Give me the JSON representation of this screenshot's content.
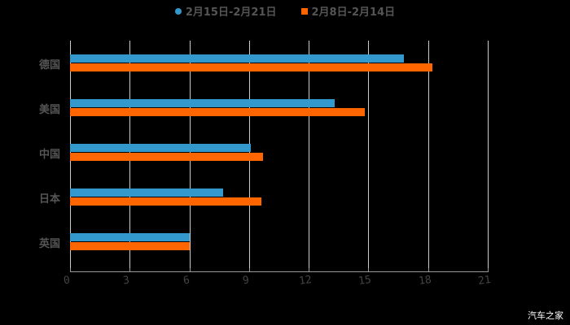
{
  "chart_data": {
    "type": "bar",
    "orientation": "horizontal",
    "title": "",
    "categories": [
      "德国",
      "美国",
      "中国",
      "日本",
      "英国"
    ],
    "series": [
      {
        "name": "2月15日-2月21日",
        "color": "#3399cc",
        "values": [
          16.8,
          13.3,
          9.1,
          7.7,
          6.0
        ]
      },
      {
        "name": "2月8日-2月14日",
        "color": "#ff6600",
        "values": [
          18.2,
          14.8,
          9.7,
          9.6,
          6.0
        ]
      }
    ],
    "xlabel": "",
    "ylabel": "",
    "xlim": [
      0,
      21
    ],
    "xticks": [
      "0",
      "3",
      "6",
      "9",
      "12",
      "15",
      "18",
      "21"
    ],
    "grid": true,
    "legend_position": "top"
  },
  "legend": {
    "series1": "2月15日-2月21日",
    "series2": "2月8日-2月14日"
  },
  "watermark": "汽车之家"
}
